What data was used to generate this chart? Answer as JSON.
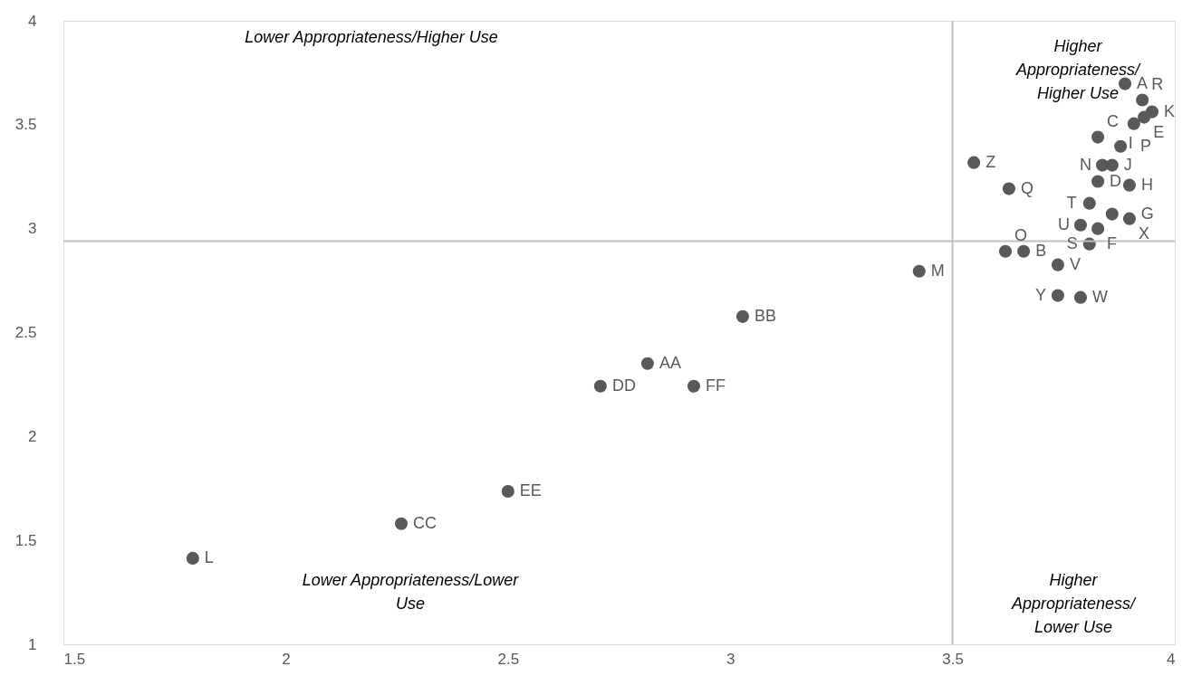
{
  "chart_data": {
    "type": "scatter",
    "color": "#595959",
    "marker": "circle",
    "grid": false,
    "x": [
      3.888,
      3.66,
      3.827,
      3.827,
      3.931,
      3.827,
      3.859,
      3.898,
      3.908,
      3.859,
      3.949,
      1.791,
      3.425,
      3.837,
      3.619,
      3.878,
      3.627,
      3.927,
      3.808,
      3.808,
      3.788,
      3.737,
      3.788,
      3.898,
      3.737,
      3.548,
      2.814,
      3.028,
      2.26,
      2.708,
      2.5,
      2.918
    ],
    "values": [
      3.697,
      2.891,
      3.44,
      3.227,
      3.536,
      3.0,
      3.07,
      3.209,
      3.505,
      3.305,
      3.562,
      1.414,
      2.795,
      3.305,
      2.891,
      3.396,
      3.192,
      3.619,
      2.926,
      3.122,
      3.017,
      2.826,
      2.669,
      3.048,
      2.678,
      3.318,
      2.351,
      2.577,
      1.58,
      2.242,
      1.736,
      2.242
    ],
    "value_labels": [
      "A",
      "B",
      "C",
      "D",
      "E",
      "F",
      "G",
      "H",
      "I",
      "J",
      "K",
      "L",
      "M",
      "N",
      "O",
      "P",
      "Q",
      "R",
      "S",
      "T",
      "U",
      "V",
      "W",
      "X",
      "Y",
      "Z",
      "AA",
      "BB",
      "CC",
      "DD",
      "EE",
      "FF"
    ],
    "xlim": [
      1.5,
      4
    ],
    "xticks": [
      1.5,
      2,
      2.5,
      3,
      3.5,
      4
    ],
    "ylim": [
      1,
      4
    ],
    "yticks": [
      1,
      1.5,
      2,
      2.5,
      3,
      3.5,
      4
    ],
    "ref_lines": [
      {
        "axis": "x",
        "value": 3.5,
        "color": "#bfbfbf"
      },
      {
        "axis": "y",
        "value": 2.94,
        "color": "#bfbfbf"
      }
    ],
    "annotations": [
      "Lower Appropriateness/Higher Use",
      "Higher Appropriateness/Higher Use",
      "Lower Appropriateness/Lower Use",
      "Higher Appropriateness/Lower Use"
    ]
  }
}
